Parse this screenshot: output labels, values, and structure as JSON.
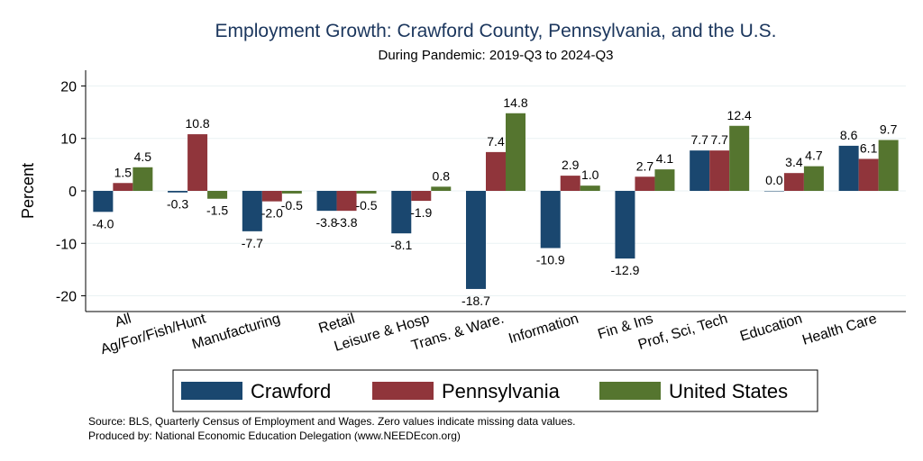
{
  "chart_data": {
    "type": "bar",
    "title": "Employment Growth: Crawford County, Pennsylvania, and the U.S.",
    "subtitle": "During Pandemic: 2019-Q3 to 2024-Q3",
    "ylabel": "Percent",
    "xlabel": "",
    "ylim": [
      -23,
      23
    ],
    "yticks": [
      -20,
      -10,
      0,
      10,
      20
    ],
    "ytick_labels": [
      "-20",
      "-10",
      "0",
      "10",
      "20"
    ],
    "grid": true,
    "legend_position": "bottom",
    "categories": [
      "All",
      "Ag/For/Fish/Hunt",
      "Manufacturing",
      "Retail",
      "Leisure & Hosp",
      "Trans. & Ware.",
      "Information",
      "Fin & Ins",
      "Prof, Sci, Tech",
      "Education",
      "Health Care"
    ],
    "series": [
      {
        "name": "Crawford",
        "color": "#1a476f",
        "values": [
          -4.0,
          -0.3,
          -7.7,
          -3.8,
          -8.1,
          -18.7,
          -10.9,
          -12.9,
          7.7,
          0.0,
          8.6
        ],
        "labels": [
          "-4.0",
          "-0.3",
          "-7.7",
          "-3.8",
          "-8.1",
          "-18.7",
          "-10.9",
          "-12.9",
          "7.7",
          "0.0",
          "8.6"
        ]
      },
      {
        "name": "Pennsylvania",
        "color": "#90353b",
        "values": [
          1.5,
          10.8,
          -2.0,
          -3.8,
          -1.9,
          7.4,
          2.9,
          2.7,
          7.7,
          3.4,
          6.1
        ],
        "labels": [
          "1.5",
          "10.8",
          "-2.0",
          "-3.8",
          "-1.9",
          "7.4",
          "2.9",
          "2.7",
          "7.7",
          "3.4",
          "6.1"
        ]
      },
      {
        "name": "United States",
        "color": "#55752f",
        "values": [
          4.5,
          -1.5,
          -0.5,
          -0.5,
          0.8,
          14.8,
          1.0,
          4.1,
          12.4,
          4.7,
          9.7
        ],
        "labels": [
          "4.5",
          "-1.5",
          "-0.5",
          "-0.5",
          "0.8",
          "14.8",
          "1.0",
          "4.1",
          "12.4",
          "4.7",
          "9.7"
        ]
      }
    ],
    "notes": [
      "Source: BLS, Quarterly Census of Employment and Wages. Zero values indicate missing data values.",
      "Produced by: National Economic Education Delegation (www.NEEDEcon.org)"
    ]
  }
}
